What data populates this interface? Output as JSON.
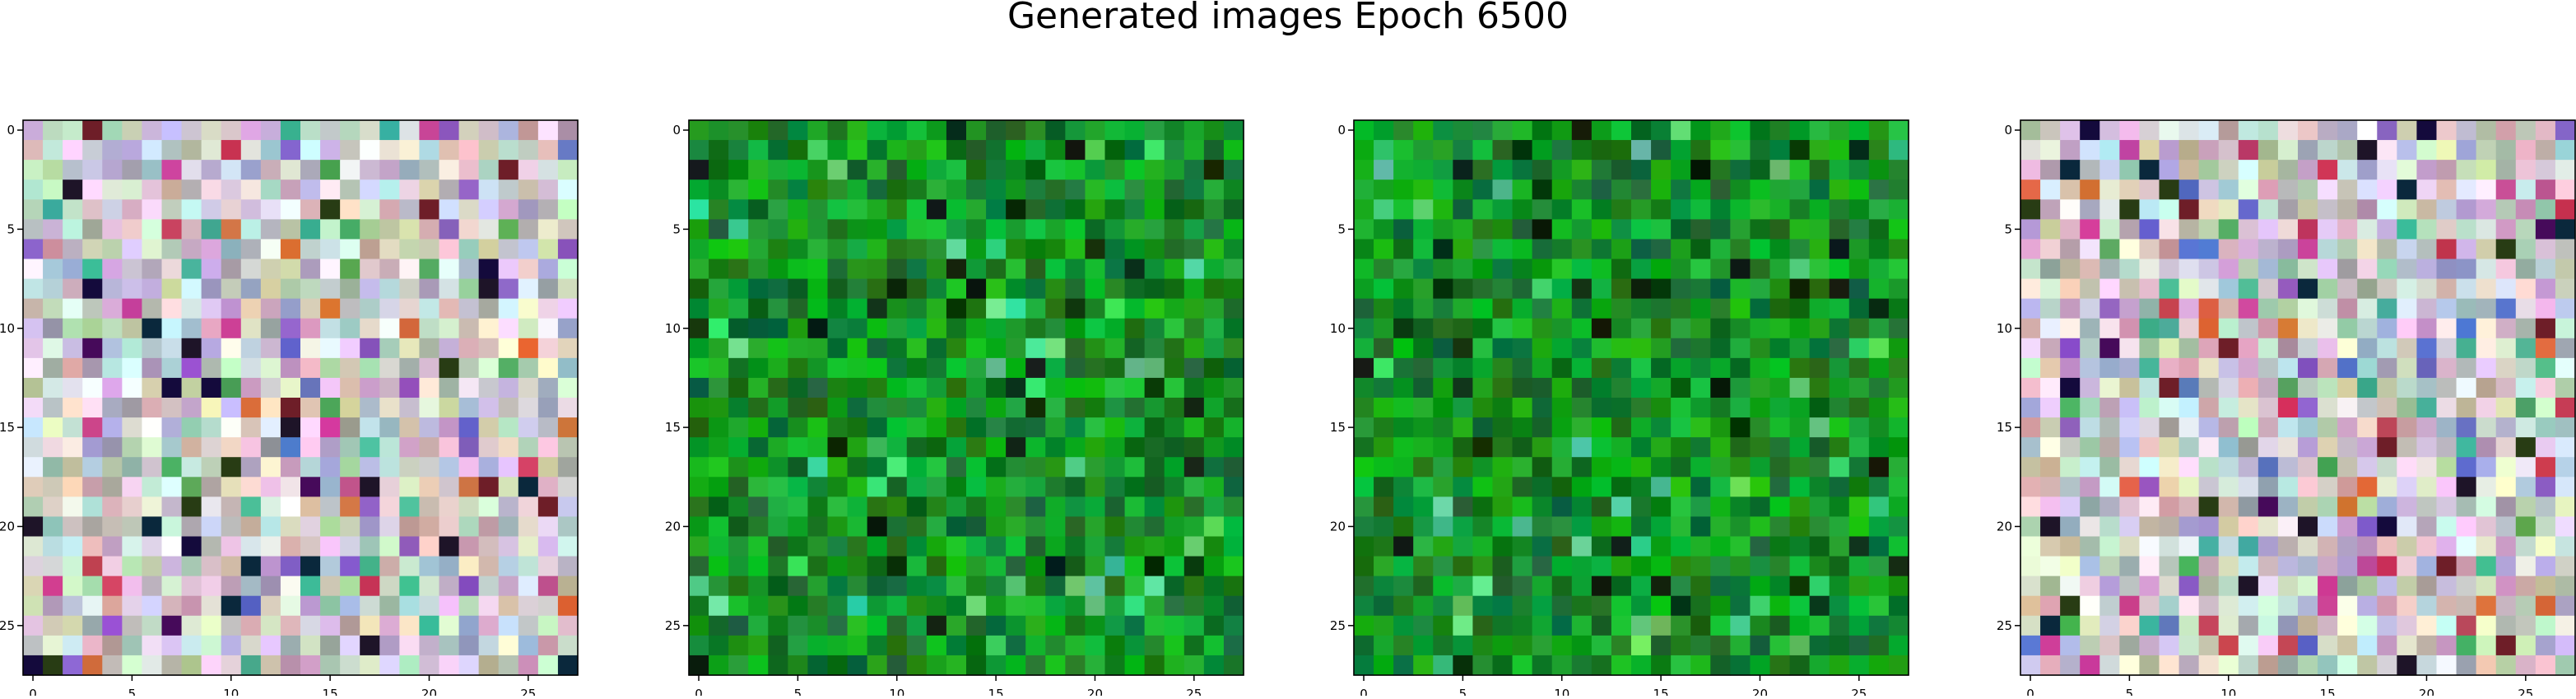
{
  "suptitle": "Generated images Epoch 6500",
  "chart_data": [
    {
      "type": "heatmap",
      "image_kind": "rgb-pixel-grid",
      "grid_size": [
        28,
        28
      ],
      "palette": "pastel-mixed",
      "xlim": [
        -0.5,
        27.5
      ],
      "ylim": [
        27.5,
        -0.5
      ],
      "xticks": [
        "0",
        "5",
        "10",
        "15",
        "20",
        "25"
      ],
      "yticks": [
        "0",
        "5",
        "10",
        "15",
        "20",
        "25"
      ],
      "grid": false
    },
    {
      "type": "heatmap",
      "image_kind": "rgb-pixel-grid",
      "grid_size": [
        28,
        28
      ],
      "palette": "green",
      "xlim": [
        -0.5,
        27.5
      ],
      "ylim": [
        27.5,
        -0.5
      ],
      "xticks": [
        "0",
        "5",
        "10",
        "15",
        "20",
        "25"
      ],
      "yticks": [
        "0",
        "5",
        "10",
        "15",
        "20",
        "25"
      ],
      "grid": false
    },
    {
      "type": "heatmap",
      "image_kind": "rgb-pixel-grid",
      "grid_size": [
        28,
        28
      ],
      "palette": "green",
      "xlim": [
        -0.5,
        27.5
      ],
      "ylim": [
        27.5,
        -0.5
      ],
      "xticks": [
        "0",
        "5",
        "10",
        "15",
        "20",
        "25"
      ],
      "yticks": [
        "0",
        "5",
        "10",
        "15",
        "20",
        "25"
      ],
      "grid": false
    },
    {
      "type": "heatmap",
      "image_kind": "rgb-pixel-grid",
      "grid_size": [
        28,
        28
      ],
      "palette": "pastel-mixed",
      "xlim": [
        -0.5,
        27.5
      ],
      "ylim": [
        27.5,
        -0.5
      ],
      "xticks": [
        "0",
        "5",
        "10",
        "15",
        "20",
        "25"
      ],
      "yticks": [
        "0",
        "5",
        "10",
        "15",
        "20",
        "25"
      ],
      "grid": false
    }
  ]
}
